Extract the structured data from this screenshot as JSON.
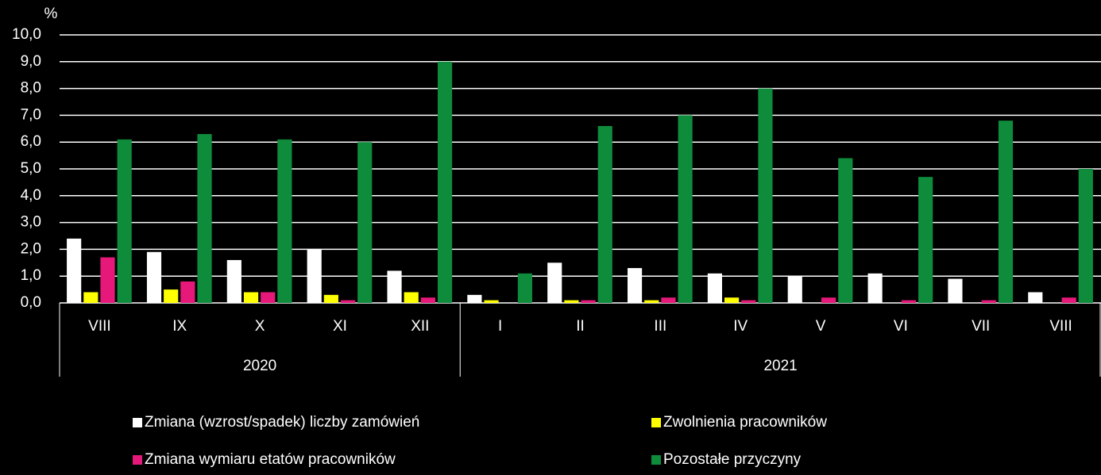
{
  "chart_data": {
    "type": "bar",
    "y_unit": "%",
    "groups": [
      {
        "label": "2020",
        "categories": [
          "VIII",
          "IX",
          "X",
          "XI",
          "XII"
        ]
      },
      {
        "label": "2021",
        "categories": [
          "I",
          "II",
          "III",
          "IV",
          "V",
          "VI",
          "VII",
          "VIII"
        ]
      }
    ],
    "series": [
      {
        "name": "Zmiana (wzrost/spadek) liczby zamówień",
        "color": "#ffffff",
        "values": [
          2.4,
          1.9,
          1.6,
          2.0,
          1.2,
          0.3,
          1.5,
          1.3,
          1.1,
          1.0,
          1.1,
          0.9,
          0.4
        ]
      },
      {
        "name": "Zwolnienia pracowników",
        "color": "#ffff00",
        "values": [
          0.4,
          0.5,
          0.4,
          0.3,
          0.4,
          0.1,
          0.1,
          0.1,
          0.2,
          0.0,
          0.0,
          0.0,
          0.0
        ]
      },
      {
        "name": "Zmiana wymiaru etatów pracowników",
        "color": "#e6197a",
        "values": [
          1.7,
          0.8,
          0.4,
          0.1,
          0.2,
          0.0,
          0.1,
          0.2,
          0.1,
          0.2,
          0.1,
          0.1,
          0.2
        ]
      },
      {
        "name": "Pozostałe przyczyny",
        "color": "#0e8c3c",
        "values": [
          6.1,
          6.3,
          6.1,
          6.0,
          9.0,
          1.1,
          6.6,
          7.0,
          8.0,
          5.4,
          4.7,
          6.8,
          5.0
        ]
      }
    ],
    "ylim": [
      0,
      10
    ],
    "yticks": [
      {
        "value": 0,
        "label": "0,0"
      },
      {
        "value": 1,
        "label": "1,0"
      },
      {
        "value": 2,
        "label": "2,0"
      },
      {
        "value": 3,
        "label": "3,0"
      },
      {
        "value": 4,
        "label": "4,0"
      },
      {
        "value": 5,
        "label": "5,0"
      },
      {
        "value": 6,
        "label": "6,0"
      },
      {
        "value": 7,
        "label": "7,0"
      },
      {
        "value": 8,
        "label": "8,0"
      },
      {
        "value": 9,
        "label": "9,0"
      },
      {
        "value": 10,
        "label": "10,0"
      }
    ],
    "grid": true
  }
}
